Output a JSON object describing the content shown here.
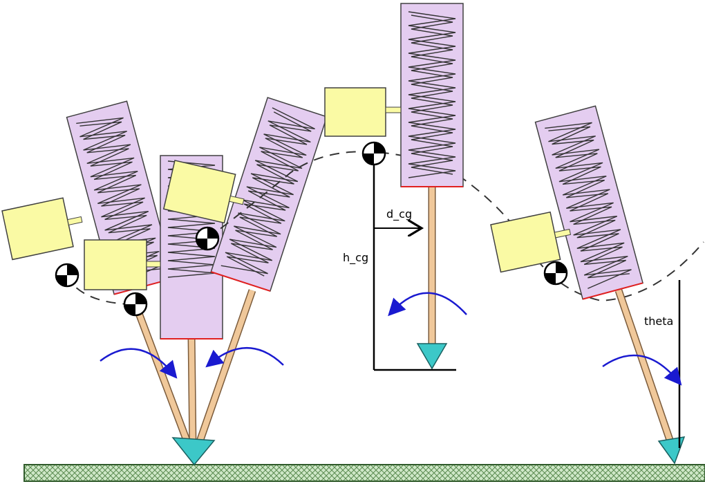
{
  "labels": {
    "d_cg": "d_cg",
    "h_cg": "h_cg",
    "theta": "theta"
  },
  "colors": {
    "spring_body": "#e4cdf0",
    "mass_box": "#fafaa4",
    "leg": "#f0c89a",
    "foot": "#3cc8c8",
    "arrow": "#1a1ad0",
    "ground": "#9ac890",
    "outline": "#404040",
    "contact_line": "#e02020"
  },
  "icons": [
    "center-of-gravity-icon",
    "rotation-arrow-icon",
    "ground-hatch"
  ]
}
